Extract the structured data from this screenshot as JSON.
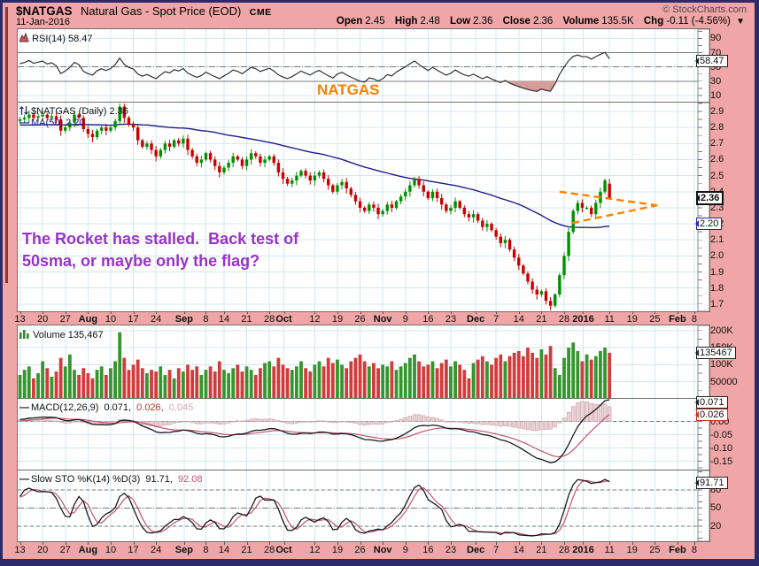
{
  "colors": {
    "background": "#F0A6A6",
    "border": "#2B2B6B",
    "grid": "#D4E7F2",
    "candle_up": "#009100",
    "candle_down": "#CC0000",
    "ma50": "#1B1B8C",
    "annotation_orange": "#FF8000",
    "annotation_purple": "#9832C8",
    "macd_line": "#1A1A1A",
    "signal_line": "#C2536F",
    "histogram_fill": "#EBD3D8",
    "histogram_edge": "#C9A3AB",
    "rsi_line": "#303030",
    "rsi_shade": "#D69C9C",
    "volume_up": "#35952F",
    "volume_down": "#D23B3B",
    "chg_arrow": "#CC0000"
  },
  "header": {
    "symbol": "$NATGAS",
    "name": "Natural Gas - Spot Price (EOD)",
    "exchange": "CME",
    "date": "11-Jan-2016",
    "copyright": "© StockCharts.com",
    "chg_arrow": "▼",
    "quote": {
      "open": {
        "label": "Open",
        "value": "2.45"
      },
      "high": {
        "label": "High",
        "value": "2.48"
      },
      "low": {
        "label": "Low",
        "value": "2.36"
      },
      "close": {
        "label": "Close",
        "value": "2.36"
      },
      "volume": {
        "label": "Volume",
        "value": "135.5K"
      },
      "chg": {
        "label": "Chg",
        "value": "-0.11 (-4.56%)"
      }
    }
  },
  "panels": {
    "rsi": {
      "legend": "RSI(14) 58.47"
    },
    "price": {
      "legend_symbol": "$NATGAS (Daily) 2.36",
      "legend_ma": "MA(50) 2.20",
      "watermark": "NATGAS",
      "note_line1": "The Rocket has stalled.  Back test of",
      "note_line2": "50sma, or maybe only the flag?"
    },
    "volume": {
      "legend": "Volume 135,467"
    },
    "macd": {
      "legend_name": "MACD(12,26,9)",
      "legend_v1": "0.071,",
      "legend_v2": "0.026,",
      "legend_v3": "0.045"
    },
    "sto": {
      "legend_name": "Slow STO %K(14) %D(3)",
      "legend_v1": "91.71,",
      "legend_v2": "92.08"
    }
  },
  "chart_data": {
    "type": "candlestick+indicators",
    "total_slots": 150,
    "ylims": {
      "rsi": [
        0,
        103
      ],
      "price": [
        1.655,
        2.955
      ],
      "volume_k": [
        0,
        215
      ],
      "macd": [
        -0.185,
        0.085
      ],
      "sto": [
        -5,
        112
      ]
    },
    "ma_period": 50,
    "rsi_period": 14,
    "macd_params": [
      12,
      26,
      9
    ],
    "sto_params": [
      14,
      3
    ],
    "x_ticks": [
      {
        "t": "13",
        "s": 0.5
      },
      {
        "t": "20",
        "s": 5.5
      },
      {
        "t": "27",
        "s": 10.5
      },
      {
        "t": "Aug",
        "s": 15.5,
        "b": true
      },
      {
        "t": "10",
        "s": 20.5
      },
      {
        "t": "17",
        "s": 25.5
      },
      {
        "t": "24",
        "s": 30.5
      },
      {
        "t": "Sep",
        "s": 36.7,
        "b": true
      },
      {
        "t": "8",
        "s": 41.5
      },
      {
        "t": "14",
        "s": 45.5
      },
      {
        "t": "21",
        "s": 50.5
      },
      {
        "t": "28",
        "s": 55.5
      },
      {
        "t": "Oct",
        "s": 58.7,
        "b": true
      },
      {
        "t": "12",
        "s": 65.5
      },
      {
        "t": "19",
        "s": 70.5
      },
      {
        "t": "26",
        "s": 75.5
      },
      {
        "t": "Nov",
        "s": 80.5,
        "b": true
      },
      {
        "t": "9",
        "s": 85.5
      },
      {
        "t": "16",
        "s": 90.5
      },
      {
        "t": "23",
        "s": 95.5
      },
      {
        "t": "Dec",
        "s": 101.0,
        "b": true
      },
      {
        "t": "7",
        "s": 105.5
      },
      {
        "t": "14",
        "s": 110.5
      },
      {
        "t": "21",
        "s": 115.5
      },
      {
        "t": "28",
        "s": 120.5
      },
      {
        "t": "2016",
        "s": 124.7,
        "b": true
      },
      {
        "t": "11",
        "s": 130.5
      },
      {
        "t": "19",
        "s": 135.5
      },
      {
        "t": "25",
        "s": 140.5
      },
      {
        "t": "Feb",
        "s": 145.5,
        "b": true
      },
      {
        "t": "8",
        "s": 149.2
      }
    ],
    "axis_ticks": {
      "rsi": [
        {
          "v": 90,
          "t": "90"
        },
        {
          "v": 70,
          "t": "70"
        },
        {
          "v": 50,
          "t": "50"
        },
        {
          "v": 30,
          "t": "30"
        },
        {
          "v": 10,
          "t": "10"
        }
      ],
      "price": [
        {
          "v": 2.9,
          "t": "2.9"
        },
        {
          "v": 2.8,
          "t": "2.8"
        },
        {
          "v": 2.7,
          "t": "2.7"
        },
        {
          "v": 2.6,
          "t": "2.6"
        },
        {
          "v": 2.5,
          "t": "2.5"
        },
        {
          "v": 2.4,
          "t": "2.4"
        },
        {
          "v": 2.3,
          "t": "2.3"
        },
        {
          "v": 2.2,
          "t": "2.2"
        },
        {
          "v": 2.1,
          "t": "2.1"
        },
        {
          "v": 2.0,
          "t": "2.0"
        },
        {
          "v": 1.9,
          "t": "1.9"
        },
        {
          "v": 1.8,
          "t": "1.8"
        },
        {
          "v": 1.7,
          "t": "1.7"
        }
      ],
      "volume": [
        {
          "v": 200,
          "t": "200K"
        },
        {
          "v": 150,
          "t": "150K"
        },
        {
          "v": 100,
          "t": "100K"
        },
        {
          "v": 50,
          "t": "50000"
        }
      ],
      "macd": [
        {
          "v": 0,
          "t": "0.00"
        },
        {
          "v": -0.05,
          "t": "-0.05"
        },
        {
          "v": -0.1,
          "t": "-0.10"
        },
        {
          "v": -0.15,
          "t": "-0.15"
        }
      ],
      "sto": [
        {
          "v": 80,
          "t": "80"
        },
        {
          "v": 50,
          "t": "50"
        },
        {
          "v": 20,
          "t": "20"
        }
      ]
    },
    "guides": {
      "rsi": [
        {
          "v": 70,
          "s": "solid"
        },
        {
          "v": 30,
          "s": "solid"
        },
        {
          "v": 50,
          "s": "dashdot"
        }
      ],
      "macd": [
        {
          "v": 0,
          "s": "dashed"
        }
      ],
      "sto": [
        {
          "v": 80,
          "s": "dashed"
        },
        {
          "v": 20,
          "s": "dashed"
        },
        {
          "v": 50,
          "s": "dashdot"
        }
      ]
    },
    "callouts": [
      {
        "panel": "rsi",
        "v": 58.47,
        "text": "58.47",
        "color": "#222222",
        "bold": false
      },
      {
        "panel": "price",
        "v": 2.36,
        "text": "2.36",
        "color": "#111111",
        "bold": true
      },
      {
        "panel": "price",
        "v": 2.2,
        "text": "2.20",
        "color": "#2A2A9A",
        "bold": false
      },
      {
        "panel": "volume",
        "v": 135.467,
        "text": "135467",
        "color": "#222222",
        "bold": false
      },
      {
        "panel": "macd",
        "v": 0.045,
        "text": "0.045",
        "color": "#D9A8B0",
        "bold": false
      },
      {
        "panel": "macd",
        "v": 0.071,
        "text": "0.071",
        "color": "#222222",
        "bold": false
      },
      {
        "panel": "macd",
        "v": 0.026,
        "text": "0.026",
        "color": "#C0392B",
        "bold": false
      },
      {
        "panel": "sto",
        "v": 92.08,
        "text": "92.08",
        "color": "#C2536F",
        "bold": false
      },
      {
        "panel": "sto",
        "v": 91.71,
        "text": "91.71",
        "color": "#222222",
        "bold": false
      }
    ],
    "pennant": {
      "upper": [
        [
          119.5,
          2.4
        ],
        [
          141,
          2.315
        ]
      ],
      "lower": [
        [
          122.3,
          2.205
        ],
        [
          141,
          2.315
        ]
      ]
    },
    "last_candle_ohlc": [
      2.45,
      2.48,
      2.36,
      2.36
    ],
    "prehistory_closes": [
      2.9,
      2.88,
      2.85,
      2.87,
      2.84,
      2.82,
      2.85,
      2.88,
      2.86,
      2.83,
      2.8,
      2.78,
      2.81,
      2.84,
      2.82,
      2.79,
      2.77,
      2.8,
      2.83,
      2.85,
      2.82,
      2.79,
      2.76,
      2.78,
      2.81,
      2.83,
      2.8,
      2.77,
      2.75,
      2.78,
      2.8,
      2.82,
      2.85,
      2.83,
      2.8,
      2.78,
      2.76,
      2.79,
      2.82,
      2.84,
      2.81,
      2.79,
      2.77,
      2.8,
      2.82,
      2.84,
      2.86,
      2.83,
      2.81,
      2.84
    ],
    "closes": [
      2.85,
      2.86,
      2.88,
      2.86,
      2.87,
      2.88,
      2.86,
      2.87,
      2.85,
      2.78,
      2.8,
      2.83,
      2.88,
      2.86,
      2.79,
      2.76,
      2.74,
      2.78,
      2.8,
      2.78,
      2.8,
      2.84,
      2.93,
      2.86,
      2.82,
      2.8,
      2.72,
      2.68,
      2.7,
      2.66,
      2.62,
      2.66,
      2.7,
      2.68,
      2.72,
      2.7,
      2.73,
      2.66,
      2.62,
      2.58,
      2.6,
      2.64,
      2.6,
      2.56,
      2.52,
      2.55,
      2.58,
      2.62,
      2.6,
      2.56,
      2.6,
      2.64,
      2.62,
      2.58,
      2.6,
      2.62,
      2.58,
      2.52,
      2.48,
      2.45,
      2.47,
      2.5,
      2.53,
      2.5,
      2.47,
      2.5,
      2.52,
      2.48,
      2.44,
      2.4,
      2.44,
      2.46,
      2.42,
      2.38,
      2.34,
      2.3,
      2.28,
      2.32,
      2.3,
      2.26,
      2.28,
      2.32,
      2.3,
      2.34,
      2.37,
      2.4,
      2.44,
      2.48,
      2.44,
      2.4,
      2.36,
      2.4,
      2.36,
      2.32,
      2.28,
      2.3,
      2.34,
      2.3,
      2.26,
      2.24,
      2.26,
      2.22,
      2.18,
      2.2,
      2.16,
      2.12,
      2.08,
      2.1,
      2.04,
      1.99,
      1.94,
      1.89,
      1.84,
      1.79,
      1.76,
      1.78,
      1.72,
      1.69,
      1.76,
      1.88,
      2.0,
      2.15,
      2.28,
      2.33,
      2.3,
      2.3,
      2.26,
      2.33,
      2.4,
      2.47,
      2.36
    ],
    "volumes_k": [
      70,
      85,
      95,
      60,
      75,
      110,
      90,
      65,
      80,
      120,
      95,
      130,
      85,
      70,
      90,
      75,
      60,
      85,
      95,
      70,
      90,
      110,
      195,
      120,
      85,
      100,
      115,
      90,
      75,
      85,
      80,
      95,
      70,
      85,
      60,
      90,
      80,
      100,
      85,
      95,
      70,
      85,
      95,
      80,
      110,
      85,
      75,
      90,
      100,
      80,
      95,
      85,
      70,
      90,
      105,
      110,
      95,
      120,
      100,
      90,
      85,
      95,
      110,
      90,
      80,
      100,
      110,
      95,
      120,
      105,
      115,
      100,
      90,
      110,
      120,
      130,
      110,
      95,
      105,
      90,
      100,
      95,
      110,
      85,
      95,
      105,
      120,
      130,
      110,
      95,
      100,
      110,
      90,
      105,
      115,
      95,
      110,
      100,
      85,
      60,
      105,
      115,
      125,
      110,
      100,
      120,
      130,
      110,
      125,
      135,
      140,
      125,
      150,
      135,
      120,
      145,
      130,
      155,
      90,
      70,
      120,
      150,
      165,
      140,
      110,
      130,
      115,
      125,
      140,
      150,
      135
    ]
  }
}
